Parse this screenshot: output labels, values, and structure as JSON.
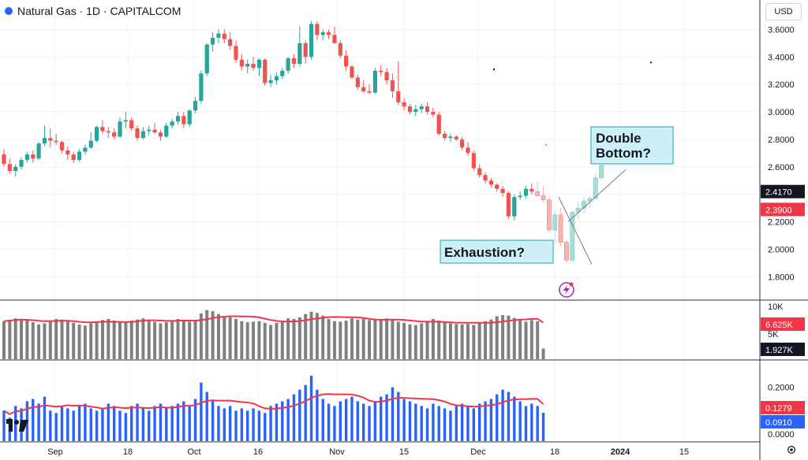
{
  "header": {
    "title": "Natural Gas · 1D · CAPITALCOM",
    "currency": "USD"
  },
  "annotations": {
    "exhaustion": "Exhaustion?",
    "double_bottom_line1": "Double",
    "double_bottom_line2": "Bottom?"
  },
  "colors": {
    "up": "#26a69a",
    "down": "#ef5350",
    "up_faded": "#a8dcd6",
    "down_faded": "#f5b3b1",
    "volume": "#808080",
    "osc": "#2962ff",
    "ma": "#f23645",
    "annotation_bg": "#cdeff6",
    "annotation_border": "#26a2b8"
  },
  "x_axis": {
    "ticks": [
      "Sep",
      "18",
      "Oct",
      "16",
      "Nov",
      "15",
      "Dec",
      "18",
      "2024",
      "15"
    ]
  },
  "price_axis": {
    "ticks": [
      "3.6000",
      "3.4000",
      "3.2000",
      "3.0000",
      "2.8000",
      "2.6000",
      "2.4000",
      "2.2000",
      "2.0000",
      "1.8000"
    ],
    "last_price": "2.4170",
    "ma_value": "2.3900"
  },
  "volume_axis": {
    "ticks": [
      "10K",
      "5K"
    ],
    "ma_value": "6.625K",
    "last_value": "1.927K"
  },
  "osc_axis": {
    "ticks": [
      "0.2000",
      "0.1000",
      "0.0000"
    ],
    "ma_value": "0.1279",
    "last_value": "0.0910"
  },
  "chart_data": [
    {
      "type": "candlestick",
      "title": "Natural Gas · 1D · CAPITALCOM",
      "ylim": [
        1.75,
        3.7
      ],
      "candles": [
        [
          2.69,
          2.73,
          2.6,
          2.62
        ],
        [
          2.62,
          2.66,
          2.55,
          2.57
        ],
        [
          2.57,
          2.62,
          2.53,
          2.6
        ],
        [
          2.6,
          2.67,
          2.58,
          2.65
        ],
        [
          2.65,
          2.71,
          2.63,
          2.69
        ],
        [
          2.69,
          2.72,
          2.63,
          2.66
        ],
        [
          2.66,
          2.78,
          2.65,
          2.77
        ],
        [
          2.77,
          2.9,
          2.75,
          2.81
        ],
        [
          2.81,
          2.88,
          2.74,
          2.79
        ],
        [
          2.79,
          2.84,
          2.76,
          2.78
        ],
        [
          2.78,
          2.79,
          2.7,
          2.72
        ],
        [
          2.72,
          2.75,
          2.65,
          2.69
        ],
        [
          2.69,
          2.71,
          2.63,
          2.65
        ],
        [
          2.65,
          2.73,
          2.64,
          2.71
        ],
        [
          2.71,
          2.76,
          2.69,
          2.74
        ],
        [
          2.74,
          2.85,
          2.73,
          2.79
        ],
        [
          2.79,
          2.9,
          2.78,
          2.89
        ],
        [
          2.89,
          2.94,
          2.84,
          2.86
        ],
        [
          2.86,
          2.89,
          2.81,
          2.85
        ],
        [
          2.85,
          2.88,
          2.8,
          2.82
        ],
        [
          2.82,
          2.96,
          2.81,
          2.93
        ],
        [
          2.93,
          3.0,
          2.88,
          2.94
        ],
        [
          2.94,
          2.96,
          2.86,
          2.88
        ],
        [
          2.88,
          2.9,
          2.79,
          2.81
        ],
        [
          2.81,
          2.89,
          2.8,
          2.86
        ],
        [
          2.86,
          2.9,
          2.83,
          2.87
        ],
        [
          2.87,
          2.92,
          2.84,
          2.85
        ],
        [
          2.85,
          2.87,
          2.79,
          2.82
        ],
        [
          2.82,
          2.92,
          2.81,
          2.9
        ],
        [
          2.9,
          2.95,
          2.88,
          2.93
        ],
        [
          2.93,
          3.0,
          2.91,
          2.97
        ],
        [
          2.97,
          3.0,
          2.88,
          2.91
        ],
        [
          2.91,
          3.02,
          2.89,
          3.01
        ],
        [
          3.01,
          3.11,
          2.99,
          3.08
        ],
        [
          3.08,
          3.3,
          3.06,
          3.28
        ],
        [
          3.28,
          3.5,
          3.26,
          3.49
        ],
        [
          3.49,
          3.58,
          3.44,
          3.54
        ],
        [
          3.54,
          3.6,
          3.5,
          3.57
        ],
        [
          3.57,
          3.6,
          3.5,
          3.53
        ],
        [
          3.53,
          3.58,
          3.45,
          3.48
        ],
        [
          3.48,
          3.52,
          3.36,
          3.38
        ],
        [
          3.38,
          3.42,
          3.3,
          3.33
        ],
        [
          3.33,
          3.38,
          3.28,
          3.35
        ],
        [
          3.35,
          3.4,
          3.3,
          3.32
        ],
        [
          3.32,
          3.39,
          3.26,
          3.38
        ],
        [
          3.38,
          3.39,
          3.19,
          3.21
        ],
        [
          3.21,
          3.27,
          3.18,
          3.23
        ],
        [
          3.23,
          3.29,
          3.2,
          3.26
        ],
        [
          3.26,
          3.32,
          3.24,
          3.3
        ],
        [
          3.3,
          3.4,
          3.28,
          3.39
        ],
        [
          3.39,
          3.42,
          3.32,
          3.35
        ],
        [
          3.35,
          3.62,
          3.33,
          3.5
        ],
        [
          3.5,
          3.52,
          3.35,
          3.4
        ],
        [
          3.4,
          3.66,
          3.38,
          3.64
        ],
        [
          3.64,
          3.66,
          3.52,
          3.56
        ],
        [
          3.56,
          3.6,
          3.52,
          3.58
        ],
        [
          3.58,
          3.6,
          3.53,
          3.56
        ],
        [
          3.56,
          3.62,
          3.51,
          3.5
        ],
        [
          3.5,
          3.52,
          3.39,
          3.41
        ],
        [
          3.41,
          3.45,
          3.3,
          3.33
        ],
        [
          3.33,
          3.34,
          3.24,
          3.25
        ],
        [
          3.25,
          3.27,
          3.16,
          3.18
        ],
        [
          3.18,
          3.23,
          3.14,
          3.15
        ],
        [
          3.15,
          3.2,
          3.13,
          3.14
        ],
        [
          3.14,
          3.32,
          3.13,
          3.3
        ],
        [
          3.3,
          3.34,
          3.26,
          3.29
        ],
        [
          3.29,
          3.32,
          3.2,
          3.23
        ],
        [
          3.23,
          3.28,
          3.1,
          3.15
        ],
        [
          3.15,
          3.37,
          3.05,
          3.07
        ],
        [
          3.07,
          3.1,
          3.01,
          3.04
        ],
        [
          3.04,
          3.06,
          2.98,
          3.0
        ],
        [
          3.0,
          3.05,
          2.97,
          3.02
        ],
        [
          3.02,
          3.06,
          2.99,
          3.04
        ],
        [
          3.04,
          3.07,
          2.98,
          3.0
        ],
        [
          3.0,
          3.03,
          2.96,
          2.98
        ],
        [
          2.98,
          3.0,
          2.83,
          2.84
        ],
        [
          2.84,
          2.86,
          2.79,
          2.81
        ],
        [
          2.81,
          2.84,
          2.78,
          2.82
        ],
        [
          2.82,
          2.83,
          2.79,
          2.8
        ],
        [
          2.8,
          2.82,
          2.72,
          2.74
        ],
        [
          2.74,
          2.78,
          2.68,
          2.7
        ],
        [
          2.7,
          2.72,
          2.57,
          2.59
        ],
        [
          2.59,
          2.62,
          2.52,
          2.54
        ],
        [
          2.54,
          2.56,
          2.48,
          2.5
        ],
        [
          2.5,
          2.52,
          2.45,
          2.47
        ],
        [
          2.47,
          2.48,
          2.42,
          2.44
        ],
        [
          2.44,
          2.46,
          2.38,
          2.41
        ],
        [
          2.41,
          2.42,
          2.22,
          2.24
        ],
        [
          2.24,
          2.4,
          2.21,
          2.38
        ],
        [
          2.38,
          2.42,
          2.36,
          2.39
        ],
        [
          2.39,
          2.46,
          2.37,
          2.44
        ],
        [
          2.44,
          2.48,
          2.4,
          2.42
        ]
      ],
      "projected_candles": [
        [
          2.42,
          2.49,
          2.38,
          2.39
        ],
        [
          2.39,
          2.46,
          2.34,
          2.36
        ],
        [
          2.36,
          2.38,
          2.12,
          2.14
        ],
        [
          2.14,
          2.28,
          2.04,
          2.25
        ],
        [
          2.25,
          2.3,
          2.02,
          2.05
        ],
        [
          2.05,
          2.07,
          1.9,
          1.92
        ],
        [
          1.92,
          2.28,
          1.91,
          2.27
        ],
        [
          2.27,
          2.35,
          2.22,
          2.3
        ],
        [
          2.3,
          2.38,
          2.26,
          2.35
        ],
        [
          2.35,
          2.39,
          2.3,
          2.37
        ],
        [
          2.37,
          2.55,
          2.36,
          2.52
        ],
        [
          2.52,
          2.63,
          2.5,
          2.61
        ]
      ]
    },
    {
      "type": "bar",
      "title": "Volume",
      "ylim": [
        0,
        10000
      ],
      "values": [
        6900,
        7100,
        7400,
        7300,
        7000,
        6700,
        6300,
        6500,
        7000,
        7300,
        7200,
        7000,
        6600,
        6300,
        6100,
        6500,
        6800,
        7100,
        7300,
        7000,
        6900,
        6700,
        7000,
        7200,
        7400,
        7200,
        6800,
        6500,
        6700,
        7000,
        7300,
        7100,
        6800,
        7100,
        8300,
        8900,
        8700,
        8200,
        7800,
        7600,
        7300,
        6900,
        6700,
        6800,
        6900,
        6600,
        6200,
        6600,
        7000,
        7400,
        7300,
        7600,
        8200,
        8600,
        8400,
        7900,
        7300,
        6900,
        6800,
        7000,
        7400,
        7200,
        7300,
        7100,
        7100,
        7300,
        7400,
        7100,
        6800,
        6600,
        6300,
        6200,
        6500,
        6800,
        7300,
        7000,
        6700,
        6500,
        6400,
        6300,
        6400,
        6200,
        6600,
        6900,
        7200,
        7800,
        8000,
        7900,
        7500,
        7200,
        6800,
        7100,
        6900,
        1927
      ],
      "ma_series": [
        6625
      ]
    },
    {
      "type": "bar",
      "title": "Oscillator",
      "ylim": [
        0,
        0.28
      ],
      "values": [
        0.1,
        0.07,
        0.12,
        0.11,
        0.14,
        0.15,
        0.13,
        0.16,
        0.1,
        0.09,
        0.12,
        0.11,
        0.1,
        0.12,
        0.13,
        0.11,
        0.1,
        0.11,
        0.13,
        0.12,
        0.1,
        0.09,
        0.12,
        0.13,
        0.11,
        0.1,
        0.12,
        0.13,
        0.11,
        0.12,
        0.13,
        0.14,
        0.12,
        0.15,
        0.22,
        0.18,
        0.14,
        0.12,
        0.11,
        0.12,
        0.1,
        0.11,
        0.1,
        0.11,
        0.1,
        0.09,
        0.12,
        0.13,
        0.14,
        0.15,
        0.17,
        0.19,
        0.21,
        0.25,
        0.19,
        0.15,
        0.13,
        0.12,
        0.14,
        0.15,
        0.16,
        0.14,
        0.13,
        0.12,
        0.14,
        0.16,
        0.17,
        0.2,
        0.18,
        0.15,
        0.14,
        0.13,
        0.12,
        0.11,
        0.13,
        0.12,
        0.11,
        0.1,
        0.12,
        0.13,
        0.12,
        0.11,
        0.13,
        0.14,
        0.15,
        0.17,
        0.19,
        0.18,
        0.16,
        0.14,
        0.12,
        0.13,
        0.12,
        0.091
      ],
      "ma_value": 0.1279
    }
  ]
}
